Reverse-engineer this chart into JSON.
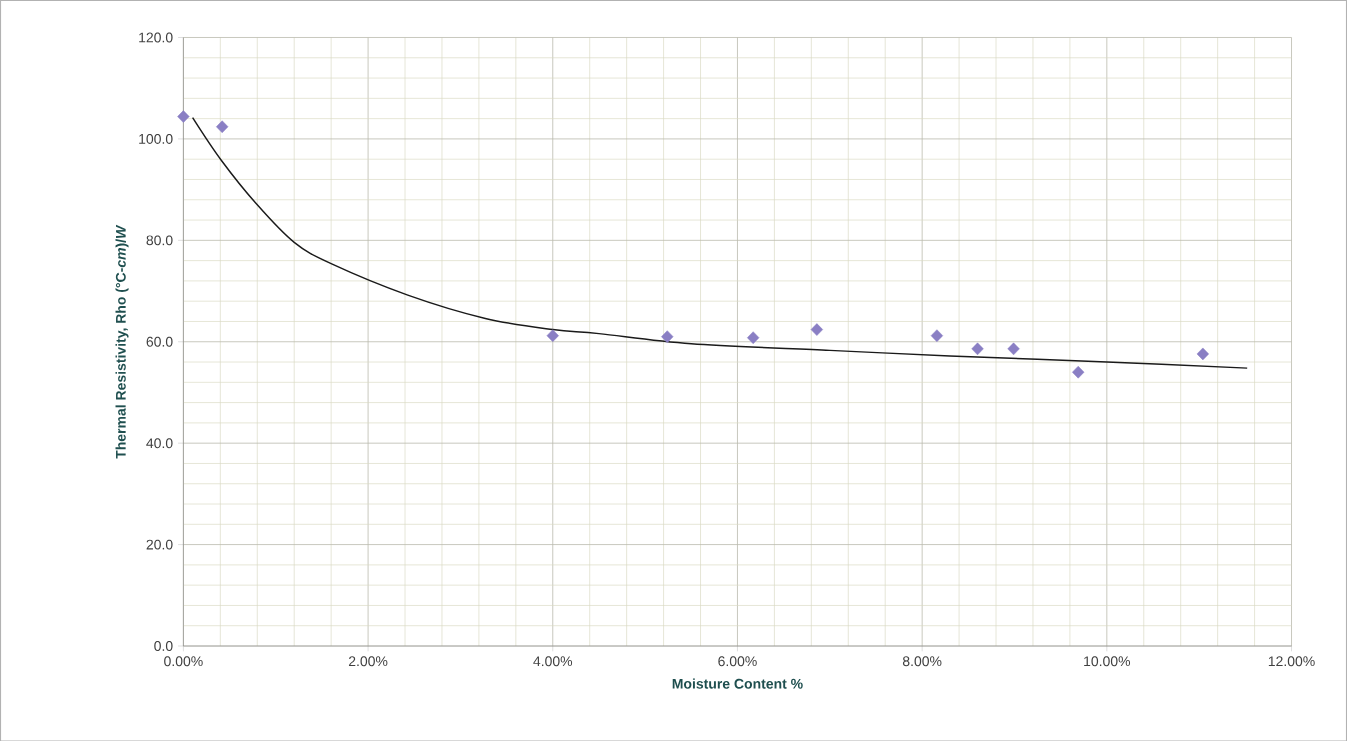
{
  "chart_data": {
    "type": "scatter",
    "xlabel": "Moisture Content %",
    "ylabel": "Thermal Resistivity, Rho (°C-*cm*)/*W*",
    "xlim": [
      0,
      12
    ],
    "ylim": [
      0,
      120
    ],
    "xticks": [
      {
        "value": 0,
        "label": "0.00%"
      },
      {
        "value": 2,
        "label": "2.00%"
      },
      {
        "value": 4,
        "label": "4.00%"
      },
      {
        "value": 6,
        "label": "6.00%"
      },
      {
        "value": 8,
        "label": "8.00%"
      },
      {
        "value": 10,
        "label": "10.00%"
      },
      {
        "value": 12,
        "label": "12.00%"
      }
    ],
    "yticks": [
      {
        "value": 0,
        "label": "0.0"
      },
      {
        "value": 20,
        "label": "20.0"
      },
      {
        "value": 40,
        "label": "40.0"
      },
      {
        "value": 60,
        "label": "60.0"
      },
      {
        "value": 80,
        "label": "80.0"
      },
      {
        "value": 100,
        "label": "100.0"
      },
      {
        "value": 120,
        "label": "120.0"
      }
    ],
    "grid": true,
    "series": [
      {
        "color": "#8a7fc4",
        "marker": "diamond",
        "x": [
          0,
          0.42,
          4.0,
          5.24,
          6.17,
          6.86,
          8.16,
          8.6,
          8.99,
          9.69,
          11.04
        ],
        "values": [
          104.4,
          102.4,
          61.2,
          61.0,
          60.8,
          62.4,
          61.2,
          58.6,
          58.6,
          54.0,
          57.6
        ]
      },
      {
        "type": "line",
        "color": "#1a1a1a",
        "marker": "none",
        "x": [
          0.1,
          0.41,
          0.8,
          1.2,
          1.6,
          2.43,
          3.27,
          4.0,
          4.5,
          5.5,
          7.0,
          8.3,
          10.0,
          11.52
        ],
        "values": [
          104.2,
          95.8,
          87.0,
          79.6,
          75.4,
          69.2,
          64.6,
          62.4,
          61.6,
          59.6,
          58.3,
          57.2,
          56.0,
          54.8
        ]
      }
    ]
  }
}
